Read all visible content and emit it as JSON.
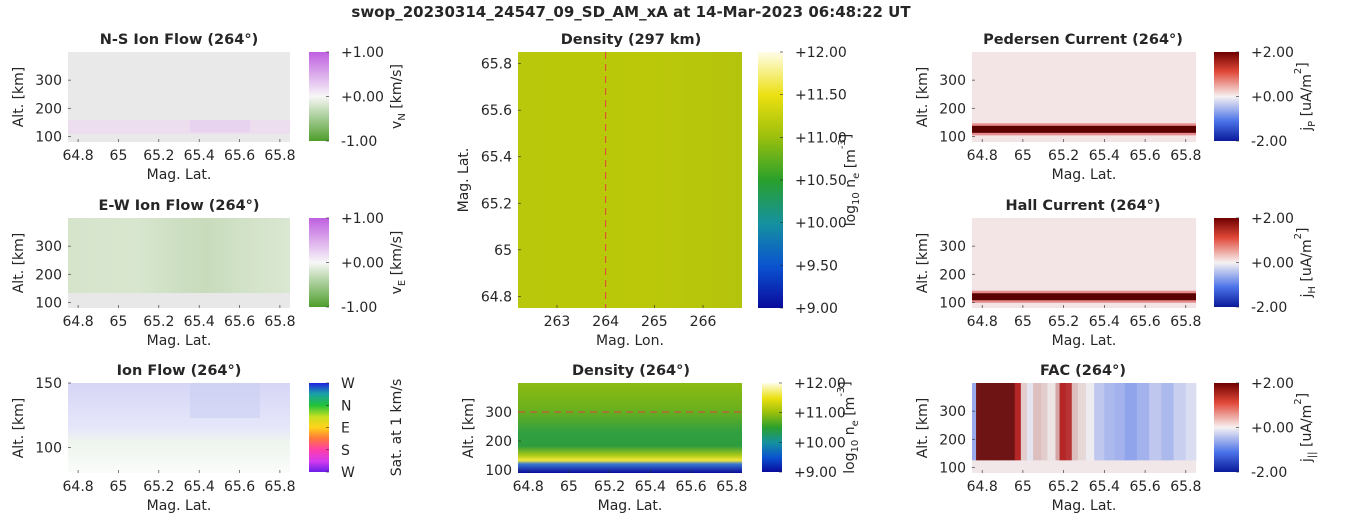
{
  "figure": {
    "title": "swop_20230314_24547_09_SD_AM_xA at 14-Mar-2023 06:48:22 UT"
  },
  "chart_data": [
    {
      "id": "ns_flow",
      "type": "heatmap",
      "title": "N-S Ion Flow (264°)",
      "xlabel": "Mag. Lat.",
      "ylabel": "Alt. [km]",
      "xlim": [
        64.75,
        65.85
      ],
      "ylim": [
        80,
        400
      ],
      "xticks": [
        "64.8",
        "65",
        "65.2",
        "65.4",
        "65.6",
        "65.8"
      ],
      "xtick_values": [
        64.8,
        65.0,
        65.2,
        65.4,
        65.6,
        65.8
      ],
      "yticks": [
        "100",
        "200",
        "300"
      ],
      "ytick_values": [
        100,
        200,
        300
      ],
      "colorbar": {
        "label_main": "v",
        "label_sub": "N",
        "label_rest": " [km/s]",
        "ticks": [
          "+1.00",
          "+0.00",
          "-1.00"
        ],
        "colormap": "purple-white-green"
      },
      "description": "near-zero flow; faint positive (purple) band near 130 km"
    },
    {
      "id": "ew_flow",
      "type": "heatmap",
      "title": "E-W Ion Flow (264°)",
      "xlabel": "Mag. Lat.",
      "ylabel": "Alt. [km]",
      "xlim": [
        64.75,
        65.85
      ],
      "ylim": [
        80,
        400
      ],
      "xticks": [
        "64.8",
        "65",
        "65.2",
        "65.4",
        "65.6",
        "65.8"
      ],
      "xtick_values": [
        64.8,
        65.0,
        65.2,
        65.4,
        65.6,
        65.8
      ],
      "yticks": [
        "100",
        "200",
        "300"
      ],
      "ytick_values": [
        100,
        200,
        300
      ],
      "colorbar": {
        "label_main": "v",
        "label_sub": "E",
        "label_rest": " [km/s]",
        "ticks": [
          "+1.00",
          "+0.00",
          "-1.00"
        ],
        "colormap": "purple-white-green"
      },
      "description": "weak negative (green) flow above ~120 km, stronger around 65.3-65.6"
    },
    {
      "id": "ion_flow",
      "type": "heatmap",
      "title": "Ion Flow (264°)",
      "xlabel": "Mag. Lat.",
      "ylabel": "Alt. [km]",
      "xlim": [
        64.75,
        65.85
      ],
      "ylim": [
        80,
        150
      ],
      "xticks": [
        "64.8",
        "65",
        "65.2",
        "65.4",
        "65.6",
        "65.8"
      ],
      "xtick_values": [
        64.8,
        65.0,
        65.2,
        65.4,
        65.6,
        65.8
      ],
      "yticks": [
        "100",
        "150"
      ],
      "ytick_values": [
        100,
        150
      ],
      "colorbar": {
        "label": "Sat. at 1 km/s",
        "ticks": [
          "W",
          "N",
          "E",
          "S",
          "W"
        ],
        "colormap": "direction-hue"
      },
      "description": "faint westward/northward flow above ~125 km"
    },
    {
      "id": "density_297",
      "type": "heatmap",
      "title": "Density (297 km)",
      "xlabel": "Mag. Lon.",
      "ylabel": "Mag. Lat.",
      "xlim": [
        262.2,
        266.8
      ],
      "ylim": [
        64.75,
        65.85
      ],
      "xticks": [
        "263",
        "264",
        "265",
        "266"
      ],
      "xtick_values": [
        263,
        264,
        265,
        266
      ],
      "yticks": [
        "64.8",
        "65",
        "65.2",
        "65.4",
        "65.6",
        "65.8"
      ],
      "ytick_values": [
        64.8,
        65.0,
        65.2,
        65.4,
        65.6,
        65.8
      ],
      "colorbar": {
        "label_main": "log",
        "label_sub": "10",
        "label_rest": " n",
        "label_sub2": "e",
        "label_unit": " [m",
        "label_sup": "-3",
        "label_end": "]",
        "ticks": [
          "+12.00",
          "+11.50",
          "+11.00",
          "+10.50",
          "+10.00",
          "+9.50",
          "+9.00"
        ],
        "tick_values": [
          12.0,
          11.5,
          11.0,
          10.5,
          10.0,
          9.5,
          9.0
        ],
        "colormap": "parula"
      },
      "field_value": 11.2,
      "marker_line": {
        "axis": "x",
        "value": 264,
        "style": "dashed",
        "color": "#e04040"
      }
    },
    {
      "id": "density_264",
      "type": "heatmap",
      "title": "Density (264°)",
      "xlabel": "Mag. Lat.",
      "ylabel": "Alt. [km]",
      "xlim": [
        64.75,
        65.85
      ],
      "ylim": [
        90,
        400
      ],
      "xticks": [
        "64.8",
        "65",
        "65.2",
        "65.4",
        "65.6",
        "65.8"
      ],
      "xtick_values": [
        64.8,
        65.0,
        65.2,
        65.4,
        65.6,
        65.8
      ],
      "yticks": [
        "100",
        "200",
        "300"
      ],
      "ytick_values": [
        100,
        200,
        300
      ],
      "colorbar": {
        "label_main": "log",
        "label_sub": "10",
        "label_rest": " n",
        "label_sub2": "e",
        "label_unit": " [m",
        "label_sup": "-3",
        "label_end": "]",
        "ticks": [
          "+12.00",
          "+11.00",
          "+10.00",
          "+9.00"
        ],
        "tick_values": [
          12.0,
          11.0,
          10.0,
          9.0
        ],
        "colormap": "parula"
      },
      "marker_line": {
        "axis": "y",
        "value": 300,
        "style": "dashed",
        "color": "#e04040"
      }
    },
    {
      "id": "pedersen",
      "type": "heatmap",
      "title": "Pedersen Current (264°)",
      "xlabel": "Mag. Lat.",
      "ylabel": "Alt. [km]",
      "xlim": [
        64.75,
        65.85
      ],
      "ylim": [
        80,
        400
      ],
      "xticks": [
        "64.8",
        "65",
        "65.2",
        "65.4",
        "65.6",
        "65.8"
      ],
      "xtick_values": [
        64.8,
        65.0,
        65.2,
        65.4,
        65.6,
        65.8
      ],
      "yticks": [
        "100",
        "200",
        "300"
      ],
      "ytick_values": [
        100,
        200,
        300
      ],
      "colorbar": {
        "label_main": "j",
        "label_sub": "P",
        "label_rest": " [uA/m",
        "label_sup": "2",
        "label_end": "]",
        "ticks": [
          "+2.00",
          "+0.00",
          "-2.00"
        ],
        "colormap": "blue-white-red"
      },
      "band_altitude_km": 125
    },
    {
      "id": "hall",
      "type": "heatmap",
      "title": "Hall Current (264°)",
      "xlabel": "Mag. Lat.",
      "ylabel": "Alt. [km]",
      "xlim": [
        64.75,
        65.85
      ],
      "ylim": [
        80,
        400
      ],
      "xticks": [
        "64.8",
        "65",
        "65.2",
        "65.4",
        "65.6",
        "65.8"
      ],
      "xtick_values": [
        64.8,
        65.0,
        65.2,
        65.4,
        65.6,
        65.8
      ],
      "yticks": [
        "100",
        "200",
        "300"
      ],
      "ytick_values": [
        100,
        200,
        300
      ],
      "colorbar": {
        "label_main": "j",
        "label_sub": "H",
        "label_rest": " [uA/m",
        "label_sup": "2",
        "label_end": "]",
        "ticks": [
          "+2.00",
          "+0.00",
          "-2.00"
        ],
        "colormap": "blue-white-red"
      },
      "band_altitude_km": 120
    },
    {
      "id": "fac",
      "type": "heatmap",
      "title": "FAC (264°)",
      "xlabel": "Mag. Lat.",
      "ylabel": "Alt. [km]",
      "xlim": [
        64.75,
        65.85
      ],
      "ylim": [
        80,
        400
      ],
      "xticks": [
        "64.8",
        "65",
        "65.2",
        "65.4",
        "65.6",
        "65.8"
      ],
      "xtick_values": [
        64.8,
        65.0,
        65.2,
        65.4,
        65.6,
        65.8
      ],
      "yticks": [
        "100",
        "200",
        "300"
      ],
      "ytick_values": [
        100,
        200,
        300
      ],
      "colorbar": {
        "label_main": "j",
        "label_sub": "||",
        "label_rest": " [uA/m",
        "label_sup": "2",
        "label_end": "]",
        "ticks": [
          "+2.00",
          "+0.00",
          "-2.00"
        ],
        "colormap": "blue-white-red"
      },
      "column_profile": {
        "lat": [
          64.75,
          64.77,
          64.79,
          64.82,
          64.85,
          64.88,
          64.92,
          64.96,
          64.99,
          65.02,
          65.05,
          65.09,
          65.12,
          65.16,
          65.18,
          65.21,
          65.24,
          65.27,
          65.31,
          65.35,
          65.4,
          65.45,
          65.5,
          65.56,
          65.62,
          65.68,
          65.74,
          65.8,
          65.85
        ],
        "value": [
          -1.0,
          1.9,
          2.0,
          2.0,
          2.0,
          2.0,
          2.0,
          1.6,
          0.3,
          -0.2,
          0.4,
          0.3,
          0.1,
          0.6,
          1.6,
          1.5,
          0.4,
          0.2,
          -0.1,
          -0.6,
          -0.8,
          -0.9,
          -1.1,
          -0.9,
          -0.6,
          -0.8,
          -0.5,
          -0.3,
          -0.2
        ]
      },
      "bottom_altitude_km": 125
    }
  ]
}
